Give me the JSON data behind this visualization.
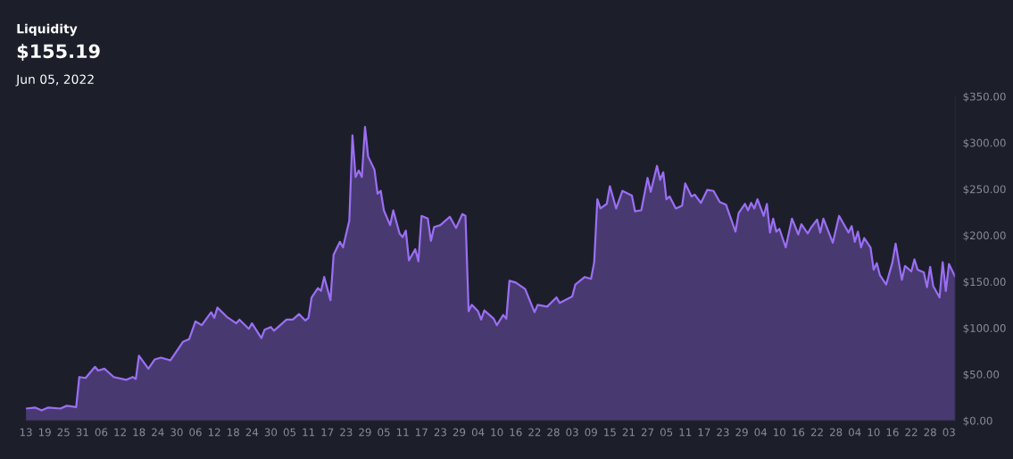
{
  "chart_data": {
    "type": "area",
    "title": "Liquidity",
    "subtitle": "$155.19",
    "annotations": [
      "Jun 05, 2022"
    ],
    "x": [
      "2021-08-13",
      "2021-08-16",
      "2021-08-18",
      "2021-08-20",
      "2021-08-24",
      "2021-08-26",
      "2021-08-29",
      "2021-08-30",
      "2021-09-01",
      "2021-09-04",
      "2021-09-05",
      "2021-09-07",
      "2021-09-08",
      "2021-09-10",
      "2021-09-14",
      "2021-09-16",
      "2021-09-17",
      "2021-09-18",
      "2021-09-21",
      "2021-09-23",
      "2021-09-25",
      "2021-09-28",
      "2021-10-02",
      "2021-10-04",
      "2021-10-06",
      "2021-10-08",
      "2021-10-11",
      "2021-10-12",
      "2021-10-13",
      "2021-10-16",
      "2021-10-19",
      "2021-10-20",
      "2021-10-23",
      "2021-10-24",
      "2021-10-27",
      "2021-10-28",
      "2021-10-30",
      "2021-10-31",
      "2021-11-04",
      "2021-11-06",
      "2021-11-08",
      "2021-11-10",
      "2021-11-11",
      "2021-11-12",
      "2021-11-14",
      "2021-11-15",
      "2021-11-16",
      "2021-11-18",
      "2021-11-19",
      "2021-11-21",
      "2021-11-22",
      "2021-11-24",
      "2021-11-25",
      "2021-11-26",
      "2021-11-27",
      "2021-11-28",
      "2021-11-29",
      "2021-11-30",
      "2021-12-02",
      "2021-12-03",
      "2021-12-04",
      "2021-12-05",
      "2021-12-07",
      "2021-12-08",
      "2021-12-10",
      "2021-12-11",
      "2021-12-12",
      "2021-12-13",
      "2021-12-15",
      "2021-12-16",
      "2021-12-17",
      "2021-12-19",
      "2021-12-20",
      "2021-12-21",
      "2021-12-23",
      "2021-12-26",
      "2021-12-28",
      "2021-12-30",
      "2021-12-31",
      "2022-01-01",
      "2022-01-02",
      "2022-01-04",
      "2022-01-05",
      "2022-01-06",
      "2022-01-09",
      "2022-01-10",
      "2022-01-12",
      "2022-01-13",
      "2022-01-14",
      "2022-01-16",
      "2022-01-19",
      "2022-01-22",
      "2022-01-23",
      "2022-01-26",
      "2022-01-29",
      "2022-01-30",
      "2022-02-03",
      "2022-02-04",
      "2022-02-07",
      "2022-02-09",
      "2022-02-10",
      "2022-02-11",
      "2022-02-12",
      "2022-02-14",
      "2022-02-15",
      "2022-02-17",
      "2022-02-19",
      "2022-02-22",
      "2022-02-23",
      "2022-02-25",
      "2022-02-27",
      "2022-02-28",
      "2022-03-02",
      "2022-03-03",
      "2022-03-04",
      "2022-03-05",
      "2022-03-06",
      "2022-03-08",
      "2022-03-10",
      "2022-03-11",
      "2022-03-13",
      "2022-03-14",
      "2022-03-16",
      "2022-03-18",
      "2022-03-20",
      "2022-03-22",
      "2022-03-24",
      "2022-03-27",
      "2022-03-28",
      "2022-03-30",
      "2022-03-31",
      "2022-04-01",
      "2022-04-02",
      "2022-04-03",
      "2022-04-05",
      "2022-04-06",
      "2022-04-07",
      "2022-04-08",
      "2022-04-09",
      "2022-04-10",
      "2022-04-12",
      "2022-04-14",
      "2022-04-16",
      "2022-04-17",
      "2022-04-19",
      "2022-04-20",
      "2022-04-22",
      "2022-04-23",
      "2022-04-24",
      "2022-04-27",
      "2022-04-29",
      "2022-04-30",
      "2022-05-02",
      "2022-05-03",
      "2022-05-04",
      "2022-05-05",
      "2022-05-06",
      "2022-05-07",
      "2022-05-09",
      "2022-05-10",
      "2022-05-11",
      "2022-05-12",
      "2022-05-14",
      "2022-05-16",
      "2022-05-17",
      "2022-05-19",
      "2022-05-20",
      "2022-05-22",
      "2022-05-23",
      "2022-05-24",
      "2022-05-26",
      "2022-05-27",
      "2022-05-28",
      "2022-05-29",
      "2022-05-31",
      "2022-06-01",
      "2022-06-02",
      "2022-06-03",
      "2022-06-05"
    ],
    "series": [
      {
        "color": "#9b6ef3",
        "values": [
          13,
          14,
          11,
          14,
          13,
          16,
          14.5,
          47,
          46,
          58,
          54,
          56,
          53,
          47,
          44,
          47,
          45,
          70,
          56,
          66,
          68,
          65,
          85,
          88,
          107,
          103,
          117,
          111,
          122,
          112,
          105,
          109,
          99,
          105,
          89,
          98,
          101,
          97,
          109,
          109,
          115,
          108,
          111,
          133,
          143,
          140,
          155,
          130,
          179,
          193,
          187,
          216,
          308,
          263,
          270,
          263,
          317,
          285,
          271,
          245,
          248,
          227,
          211,
          227,
          202,
          198,
          205,
          173,
          185,
          172,
          221,
          218,
          194,
          209,
          211,
          220,
          208,
          223,
          221,
          118,
          125,
          118,
          109,
          119,
          110,
          103,
          114,
          110,
          151,
          149,
          142,
          117,
          125,
          123,
          133,
          127,
          134,
          147,
          155,
          153,
          171,
          239,
          229,
          234,
          253,
          229,
          248,
          243,
          226,
          227,
          262,
          247,
          275,
          260,
          268,
          239,
          242,
          229,
          232,
          256,
          242,
          244,
          235,
          249,
          248,
          236,
          233,
          204,
          224,
          234,
          227,
          235,
          229,
          239,
          221,
          234,
          203,
          218,
          204,
          207,
          187,
          218,
          201,
          212,
          202,
          208,
          217,
          203,
          218,
          192,
          221,
          215,
          203,
          210,
          193,
          204,
          187,
          197,
          187,
          163,
          170,
          157,
          147,
          171,
          191,
          152,
          167,
          161,
          174,
          163,
          160,
          144,
          166,
          145,
          133,
          171,
          140,
          169,
          155.19
        ]
      }
    ],
    "xlim": [
      "2021-08-13",
      "2022-06-05"
    ],
    "xticks": [
      {
        "value": "2021-08-13",
        "label": "13"
      },
      {
        "value": "2021-08-19",
        "label": "19"
      },
      {
        "value": "2021-08-25",
        "label": "25"
      },
      {
        "value": "2021-08-31",
        "label": "31"
      },
      {
        "value": "2021-09-06",
        "label": "06"
      },
      {
        "value": "2021-09-12",
        "label": "12"
      },
      {
        "value": "2021-09-18",
        "label": "18"
      },
      {
        "value": "2021-09-24",
        "label": "24"
      },
      {
        "value": "2021-09-30",
        "label": "30"
      },
      {
        "value": "2021-10-06",
        "label": "06"
      },
      {
        "value": "2021-10-12",
        "label": "12"
      },
      {
        "value": "2021-10-18",
        "label": "18"
      },
      {
        "value": "2021-10-24",
        "label": "24"
      },
      {
        "value": "2021-10-30",
        "label": "30"
      },
      {
        "value": "2021-11-05",
        "label": "05"
      },
      {
        "value": "2021-11-11",
        "label": "11"
      },
      {
        "value": "2021-11-17",
        "label": "17"
      },
      {
        "value": "2021-11-23",
        "label": "23"
      },
      {
        "value": "2021-11-29",
        "label": "29"
      },
      {
        "value": "2021-12-05",
        "label": "05"
      },
      {
        "value": "2021-12-11",
        "label": "11"
      },
      {
        "value": "2021-12-17",
        "label": "17"
      },
      {
        "value": "2021-12-23",
        "label": "23"
      },
      {
        "value": "2021-12-29",
        "label": "29"
      },
      {
        "value": "2022-01-04",
        "label": "04"
      },
      {
        "value": "2022-01-10",
        "label": "10"
      },
      {
        "value": "2022-01-16",
        "label": "16"
      },
      {
        "value": "2022-01-22",
        "label": "22"
      },
      {
        "value": "2022-01-28",
        "label": "28"
      },
      {
        "value": "2022-02-03",
        "label": "03"
      },
      {
        "value": "2022-02-09",
        "label": "09"
      },
      {
        "value": "2022-02-15",
        "label": "15"
      },
      {
        "value": "2022-02-21",
        "label": "21"
      },
      {
        "value": "2022-02-27",
        "label": "27"
      },
      {
        "value": "2022-03-05",
        "label": "05"
      },
      {
        "value": "2022-03-11",
        "label": "11"
      },
      {
        "value": "2022-03-17",
        "label": "17"
      },
      {
        "value": "2022-03-23",
        "label": "23"
      },
      {
        "value": "2022-03-29",
        "label": "29"
      },
      {
        "value": "2022-04-04",
        "label": "04"
      },
      {
        "value": "2022-04-10",
        "label": "10"
      },
      {
        "value": "2022-04-16",
        "label": "16"
      },
      {
        "value": "2022-04-22",
        "label": "22"
      },
      {
        "value": "2022-04-28",
        "label": "28"
      },
      {
        "value": "2022-05-04",
        "label": "04"
      },
      {
        "value": "2022-05-10",
        "label": "10"
      },
      {
        "value": "2022-05-16",
        "label": "16"
      },
      {
        "value": "2022-05-22",
        "label": "22"
      },
      {
        "value": "2022-05-28",
        "label": "28"
      },
      {
        "value": "2022-06-03",
        "label": "03"
      }
    ],
    "ylim": [
      0,
      350
    ],
    "yticks": [
      {
        "value": 0,
        "label": "$0.00"
      },
      {
        "value": 50,
        "label": "$50.00"
      },
      {
        "value": 100,
        "label": "$100.00"
      },
      {
        "value": 150,
        "label": "$150.00"
      },
      {
        "value": 200,
        "label": "$200.00"
      },
      {
        "value": 250,
        "label": "$250.00"
      },
      {
        "value": 300,
        "label": "$300.00"
      },
      {
        "value": 350,
        "label": "$350.00"
      }
    ]
  }
}
